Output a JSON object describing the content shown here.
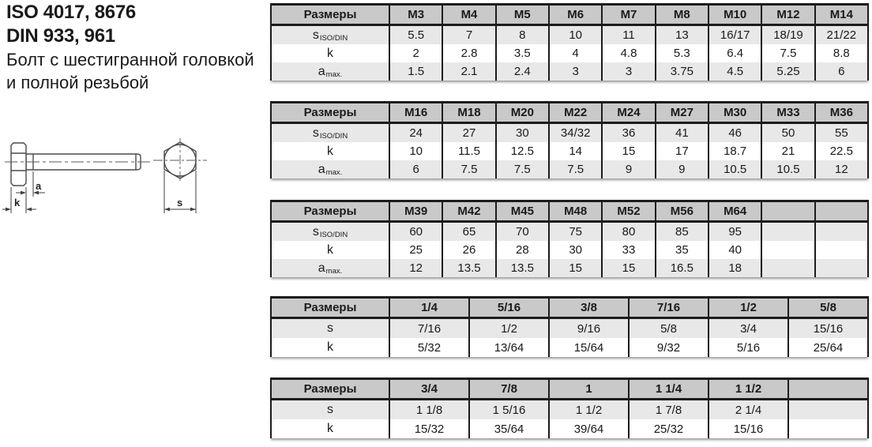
{
  "doc": {
    "title_line1": "ISO 4017, 8676",
    "title_line2": "DIN 933, 961",
    "subtitle_line1": "Болт с шестигранной головкой",
    "subtitle_line2": "и полной резьбой"
  },
  "colors": {
    "header_bg": "#c9c9c9",
    "row_alt_bg": "#e8e8e8",
    "border": "#1c1c1c"
  },
  "diagram": {
    "labels": {
      "a": "a",
      "k": "k",
      "s": "s"
    }
  },
  "tables": [
    {
      "header_label": "Размеры",
      "columns": [
        "M3",
        "M4",
        "M5",
        "M6",
        "M7",
        "M8",
        "M10",
        "M12",
        "M14"
      ],
      "rows": [
        {
          "label": "s",
          "sub": "ISO/DIN",
          "values": [
            "5.5",
            "7",
            "8",
            "10",
            "11",
            "13",
            "16/17",
            "18/19",
            "21/22"
          ]
        },
        {
          "label": "k",
          "sub": "",
          "values": [
            "2",
            "2.8",
            "3.5",
            "4",
            "4.8",
            "5.3",
            "6.4",
            "7.5",
            "8.8"
          ]
        },
        {
          "label": "a",
          "sub": "max.",
          "values": [
            "1.5",
            "2.1",
            "2.4",
            "3",
            "3",
            "3.75",
            "4.5",
            "5.25",
            "6"
          ]
        }
      ]
    },
    {
      "header_label": "Размеры",
      "columns": [
        "M16",
        "M18",
        "M20",
        "M22",
        "M24",
        "M27",
        "M30",
        "M33",
        "M36"
      ],
      "rows": [
        {
          "label": "s",
          "sub": "ISO/DIN",
          "values": [
            "24",
            "27",
            "30",
            "34/32",
            "36",
            "41",
            "46",
            "50",
            "55"
          ]
        },
        {
          "label": "k",
          "sub": "",
          "values": [
            "10",
            "11.5",
            "12.5",
            "14",
            "15",
            "17",
            "18.7",
            "21",
            "22.5"
          ]
        },
        {
          "label": "a",
          "sub": "max.",
          "values": [
            "6",
            "7.5",
            "7.5",
            "7.5",
            "9",
            "9",
            "10.5",
            "10.5",
            "12"
          ]
        }
      ]
    },
    {
      "header_label": "Размеры",
      "columns": [
        "M39",
        "M42",
        "M45",
        "M48",
        "M52",
        "M56",
        "M64",
        "",
        ""
      ],
      "rows": [
        {
          "label": "s",
          "sub": "ISO/DIN",
          "values": [
            "60",
            "65",
            "70",
            "75",
            "80",
            "85",
            "95",
            "",
            ""
          ]
        },
        {
          "label": "k",
          "sub": "",
          "values": [
            "25",
            "26",
            "28",
            "30",
            "33",
            "35",
            "40",
            "",
            ""
          ]
        },
        {
          "label": "a",
          "sub": "max.",
          "values": [
            "12",
            "13.5",
            "13.5",
            "15",
            "15",
            "16.5",
            "18",
            "",
            ""
          ]
        }
      ]
    },
    {
      "header_label": "Размеры",
      "columns": [
        "1/4",
        "5/16",
        "3/8",
        "7/16",
        "1/2",
        "5/8"
      ],
      "rows": [
        {
          "label": "s",
          "sub": "",
          "values": [
            "7/16",
            "1/2",
            "9/16",
            "5/8",
            "3/4",
            "15/16"
          ]
        },
        {
          "label": "k",
          "sub": "",
          "values": [
            "5/32",
            "13/64",
            "15/64",
            "9/32",
            "5/16",
            "25/64"
          ]
        }
      ]
    },
    {
      "header_label": "Размеры",
      "columns": [
        "3/4",
        "7/8",
        "1",
        "1 1/4",
        "1 1/2",
        ""
      ],
      "rows": [
        {
          "label": "s",
          "sub": "",
          "values": [
            "1 1/8",
            "1 5/16",
            "1 1/2",
            "1 7/8",
            "2 1/4",
            ""
          ]
        },
        {
          "label": "k",
          "sub": "",
          "values": [
            "15/32",
            "35/64",
            "39/64",
            "25/32",
            "15/16",
            ""
          ]
        }
      ]
    }
  ]
}
